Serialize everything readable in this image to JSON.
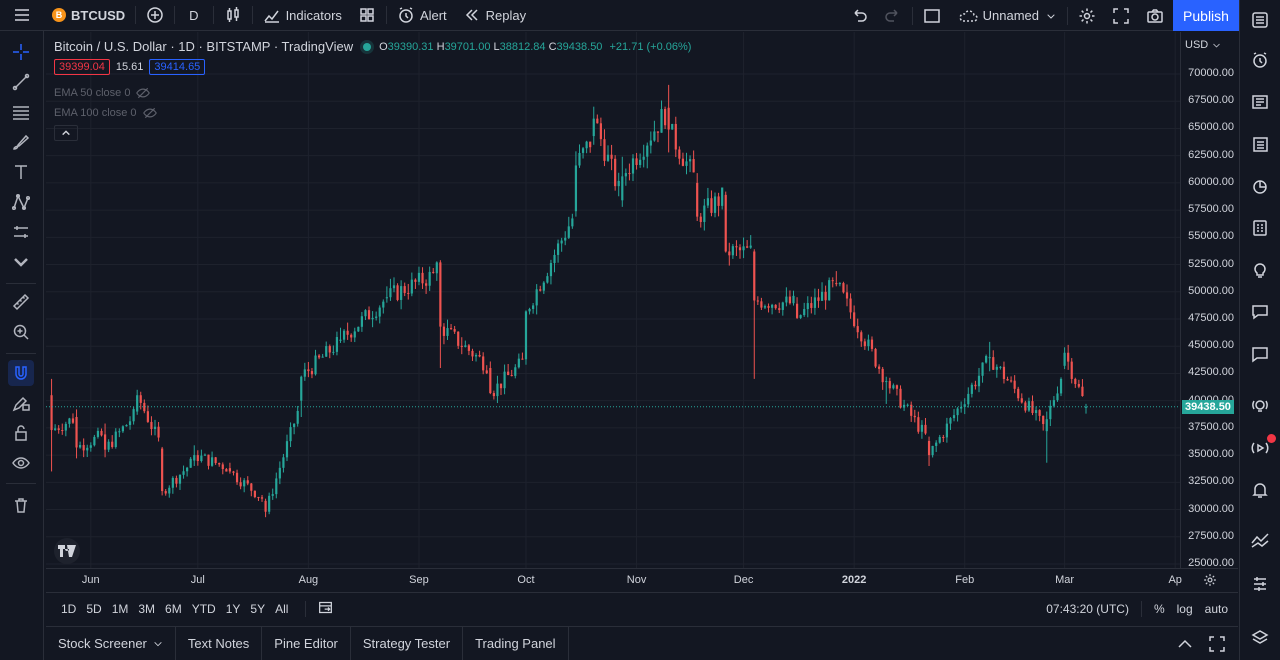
{
  "topbar": {
    "symbol": "BTCUSD",
    "btc_badge": "B",
    "interval": "D",
    "indicators_label": "Indicators",
    "alert_label": "Alert",
    "replay_label": "Replay",
    "layout_name": "Unnamed",
    "publish_label": "Publish"
  },
  "legend": {
    "title": "Bitcoin / U.S. Dollar · 1D · BITSTAMP · TradingView",
    "open_label": "O",
    "open": "39390.31",
    "high_label": "H",
    "high": "39701.00",
    "low_label": "L",
    "low": "38812.84",
    "close_label": "C",
    "close": "39438.50",
    "change": "+21.71 (+0.06%)",
    "bid": "39399.04",
    "spread": "15.61",
    "ask": "39414.65",
    "ema50": "EMA 50 close 0",
    "ema100": "EMA 100 close 0"
  },
  "price_axis": {
    "currency": "USD",
    "ticks": [
      "70000.00",
      "67500.00",
      "65000.00",
      "62500.00",
      "60000.00",
      "57500.00",
      "55000.00",
      "52500.00",
      "50000.00",
      "47500.00",
      "45000.00",
      "42500.00",
      "40000.00",
      "37500.00",
      "35000.00",
      "32500.00",
      "30000.00",
      "27500.00",
      "25000.00"
    ],
    "last_price": "39438.50"
  },
  "time_axis": {
    "ticks": [
      "Jun",
      "Jul",
      "Aug",
      "Sep",
      "Oct",
      "Nov",
      "Dec",
      "2022",
      "Feb",
      "Mar",
      "Ap"
    ]
  },
  "rangebar": {
    "ranges": [
      "1D",
      "5D",
      "1M",
      "3M",
      "6M",
      "YTD",
      "1Y",
      "5Y",
      "All"
    ],
    "clock": "07:43:20 (UTC)",
    "percent_label": "%",
    "log_label": "log",
    "auto_label": "auto"
  },
  "panels": {
    "tabs": [
      "Stock Screener",
      "Text Notes",
      "Pine Editor",
      "Strategy Tester",
      "Trading Panel"
    ]
  },
  "colors": {
    "up": "#26a69a",
    "down": "#ef5350",
    "accent": "#2962ff",
    "background": "#131722"
  },
  "chart_data": {
    "type": "candlestick",
    "symbol": "BTCUSD",
    "interval": "1D",
    "ylim": [
      25000,
      70000
    ],
    "x_range": [
      "2021-05-20",
      "2022-03-07"
    ],
    "ohlc_sampled": [
      {
        "date": "2021-05-21",
        "open": 40500,
        "high": 42000,
        "low": 33500,
        "close": 37300
      },
      {
        "date": "2021-05-28",
        "open": 38500,
        "high": 39200,
        "low": 34700,
        "close": 35700
      },
      {
        "date": "2021-06-05",
        "open": 36900,
        "high": 37900,
        "low": 34800,
        "close": 35500
      },
      {
        "date": "2021-06-14",
        "open": 39000,
        "high": 41000,
        "low": 38700,
        "close": 40500
      },
      {
        "date": "2021-06-21",
        "open": 35600,
        "high": 35750,
        "low": 31300,
        "close": 31700
      },
      {
        "date": "2021-06-30",
        "open": 34500,
        "high": 35900,
        "low": 34000,
        "close": 35000
      },
      {
        "date": "2021-07-10",
        "open": 33800,
        "high": 34300,
        "low": 33300,
        "close": 33500
      },
      {
        "date": "2021-07-20",
        "open": 30800,
        "high": 31000,
        "low": 29300,
        "close": 29800
      },
      {
        "date": "2021-07-30",
        "open": 40000,
        "high": 42300,
        "low": 38500,
        "close": 42200
      },
      {
        "date": "2021-08-10",
        "open": 45500,
        "high": 46700,
        "low": 45300,
        "close": 45600
      },
      {
        "date": "2021-08-23",
        "open": 49400,
        "high": 50500,
        "low": 49000,
        "close": 49500
      },
      {
        "date": "2021-09-06",
        "open": 51700,
        "high": 52800,
        "low": 51000,
        "close": 52700
      },
      {
        "date": "2021-09-07",
        "open": 52700,
        "high": 52900,
        "low": 43000,
        "close": 46800
      },
      {
        "date": "2021-09-21",
        "open": 43000,
        "high": 43600,
        "low": 40600,
        "close": 40700
      },
      {
        "date": "2021-10-01",
        "open": 43800,
        "high": 48300,
        "low": 43300,
        "close": 48200
      },
      {
        "date": "2021-10-15",
        "open": 57400,
        "high": 62900,
        "low": 56900,
        "close": 61600
      },
      {
        "date": "2021-10-20",
        "open": 64300,
        "high": 67000,
        "low": 63500,
        "close": 65900
      },
      {
        "date": "2021-10-28",
        "open": 58400,
        "high": 62400,
        "low": 57800,
        "close": 60600
      },
      {
        "date": "2021-11-10",
        "open": 66900,
        "high": 69000,
        "low": 62800,
        "close": 64900
      },
      {
        "date": "2021-11-18",
        "open": 60000,
        "high": 60900,
        "low": 56500,
        "close": 56900
      },
      {
        "date": "2021-11-26",
        "open": 58900,
        "high": 59200,
        "low": 53600,
        "close": 53700
      },
      {
        "date": "2021-12-04",
        "open": 53700,
        "high": 53900,
        "low": 42000,
        "close": 49200
      },
      {
        "date": "2021-12-16",
        "open": 48900,
        "high": 49500,
        "low": 47500,
        "close": 47600
      },
      {
        "date": "2021-12-27",
        "open": 50800,
        "high": 51900,
        "low": 50500,
        "close": 50700
      },
      {
        "date": "2022-01-10",
        "open": 41800,
        "high": 42200,
        "low": 39700,
        "close": 41800
      },
      {
        "date": "2022-01-22",
        "open": 36300,
        "high": 36700,
        "low": 34000,
        "close": 35000
      },
      {
        "date": "2022-02-08",
        "open": 43900,
        "high": 45400,
        "low": 42700,
        "close": 44000
      },
      {
        "date": "2022-02-24",
        "open": 37200,
        "high": 39000,
        "low": 34300,
        "close": 38300
      },
      {
        "date": "2022-03-01",
        "open": 43200,
        "high": 44900,
        "low": 42900,
        "close": 44400
      },
      {
        "date": "2022-03-07",
        "open": 39390.31,
        "high": 39701.0,
        "low": 38812.84,
        "close": 39438.5
      }
    ]
  }
}
